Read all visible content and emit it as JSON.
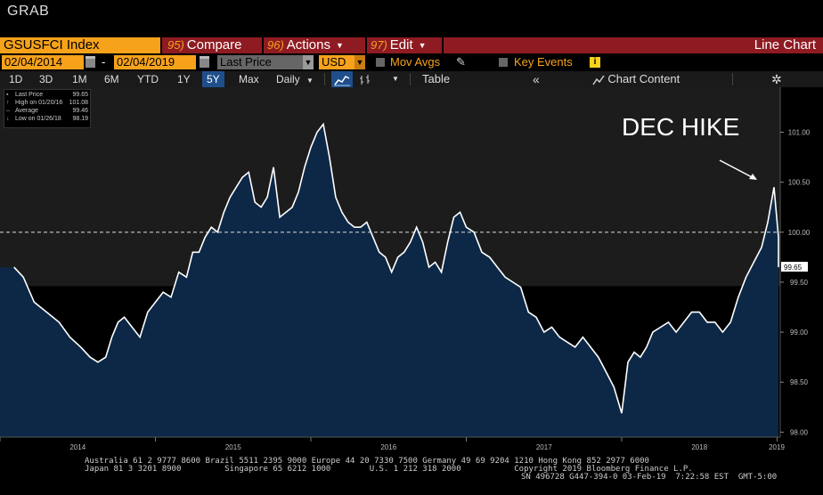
{
  "header": {
    "title": "GRAB"
  },
  "toolbar1": {
    "ticker": "GSUSFCI Index",
    "compare": {
      "num": "95)",
      "label": "Compare"
    },
    "actions": {
      "num": "96)",
      "label": "Actions"
    },
    "edit": {
      "num": "97)",
      "label": "Edit"
    },
    "chart_type": "Line Chart"
  },
  "toolbar2": {
    "start_date": "02/04/2014",
    "end_date": "02/04/2019",
    "dash": "-",
    "field": "Last Price",
    "currency": "USD",
    "mov_avgs": "Mov Avgs",
    "key_events": "Key Events",
    "info_icon": "i"
  },
  "toolbar3": {
    "timeframes": [
      "1D",
      "3D",
      "1M",
      "6M",
      "YTD",
      "1Y",
      "5Y",
      "Max"
    ],
    "active_timeframe": "5Y",
    "periodicity": "Daily",
    "table": "Table",
    "chart_content": "Chart Content"
  },
  "legend": {
    "rows": [
      {
        "label": "Last Price",
        "value": "99.65",
        "icon": "square-icon"
      },
      {
        "label": "High on 01/20/16",
        "value": "101.08",
        "icon": "up-arrow-icon"
      },
      {
        "label": "Average",
        "value": "99.46",
        "icon": "dash-icon"
      },
      {
        "label": "Low on 01/26/18",
        "value": "98.19",
        "icon": "down-arrow-icon"
      }
    ]
  },
  "annotation": {
    "text": "DEC HIKE"
  },
  "chart_data": {
    "type": "area",
    "title": "",
    "xlabel": "",
    "ylabel": "",
    "x_ticks": [
      "2014",
      "2015",
      "2016",
      "2017",
      "2018",
      "2019"
    ],
    "y_ticks": [
      "101.00",
      "100.50",
      "100.00",
      "99.50",
      "99.00",
      "98.50",
      "98.00"
    ],
    "ylim": [
      97.95,
      101.45
    ],
    "reference_line": 100.0,
    "last_value_label": "99.65",
    "series": [
      {
        "x": [
          2014.09,
          2014.15,
          2014.22,
          2014.3,
          2014.38,
          2014.45,
          2014.52,
          2014.58,
          2014.63,
          2014.68,
          2014.72,
          2014.76,
          2014.8,
          2014.85,
          2014.9,
          2014.95,
          2015.0,
          2015.05,
          2015.1,
          2015.15,
          2015.2,
          2015.24,
          2015.28,
          2015.32,
          2015.36,
          2015.4,
          2015.44,
          2015.48,
          2015.52,
          2015.56,
          2015.6,
          2015.64,
          2015.68,
          2015.72,
          2015.76,
          2015.8,
          2015.84,
          2015.88,
          2015.92,
          2015.96,
          2016.0,
          2016.04,
          2016.08,
          2016.12,
          2016.16,
          2016.2,
          2016.24,
          2016.28,
          2016.32,
          2016.36,
          2016.4,
          2016.44,
          2016.48,
          2016.52,
          2016.56,
          2016.6,
          2016.64,
          2016.68,
          2016.72,
          2016.76,
          2016.8,
          2016.84,
          2016.88,
          2016.92,
          2016.96,
          2017.0,
          2017.05,
          2017.1,
          2017.15,
          2017.2,
          2017.25,
          2017.3,
          2017.35,
          2017.4,
          2017.45,
          2017.5,
          2017.55,
          2017.6,
          2017.65,
          2017.7,
          2017.75,
          2017.8,
          2017.85,
          2017.9,
          2017.95,
          2018.0,
          2018.04,
          2018.08,
          2018.12,
          2018.16,
          2018.2,
          2018.25,
          2018.3,
          2018.35,
          2018.4,
          2018.45,
          2018.5,
          2018.55,
          2018.6,
          2018.65,
          2018.7,
          2018.75,
          2018.8,
          2018.85,
          2018.9,
          2018.94,
          2018.98,
          2019.02,
          2019.06,
          2019.1
        ],
        "values": [
          99.65,
          99.55,
          99.3,
          99.2,
          99.1,
          98.95,
          98.85,
          98.75,
          98.7,
          98.75,
          98.95,
          99.1,
          99.15,
          99.05,
          98.95,
          99.2,
          99.3,
          99.4,
          99.35,
          99.6,
          99.55,
          99.8,
          99.8,
          99.95,
          100.05,
          100.0,
          100.2,
          100.35,
          100.45,
          100.55,
          100.6,
          100.3,
          100.25,
          100.35,
          100.65,
          100.15,
          100.2,
          100.25,
          100.4,
          100.65,
          100.85,
          101.0,
          101.08,
          100.75,
          100.35,
          100.2,
          100.1,
          100.05,
          100.05,
          100.1,
          99.95,
          99.8,
          99.75,
          99.6,
          99.75,
          99.8,
          99.9,
          100.05,
          99.9,
          99.65,
          99.7,
          99.6,
          99.9,
          100.15,
          100.2,
          100.05,
          100.0,
          99.8,
          99.75,
          99.65,
          99.55,
          99.5,
          99.45,
          99.2,
          99.15,
          99.0,
          99.05,
          98.95,
          98.9,
          98.85,
          98.95,
          98.85,
          98.75,
          98.6,
          98.45,
          98.19,
          98.7,
          98.8,
          98.75,
          98.85,
          99.0,
          99.05,
          99.1,
          99.0,
          99.1,
          99.2,
          99.2,
          99.1,
          99.1,
          99.0,
          99.1,
          99.35,
          99.55,
          99.7,
          99.85,
          100.1,
          100.45,
          99.95,
          99.8,
          99.65
        ]
      }
    ],
    "avg_level": 99.46,
    "grid": false,
    "legend_placement": "top-left"
  },
  "footer": {
    "line1": "Australia 61 2 9777 8600 Brazil 5511 2395 9000 Europe 44 20 7330 7500 Germany 49 69 9204 1210 Hong Kong 852 2977 6000",
    "line2": "Japan 81 3 3201 8900         Singapore 65 6212 1000        U.S. 1 212 318 2000           Copyright 2019 Bloomberg Finance L.P.",
    "line3": "SN 496728 G447-394-0 03-Feb-19  7:22:58 EST  GMT-5:00"
  },
  "colors": {
    "orange": "#f7a21b",
    "menu_red": "#8f1b22",
    "area_fill": "#0d2847",
    "active_blue": "#1f4f8a"
  }
}
